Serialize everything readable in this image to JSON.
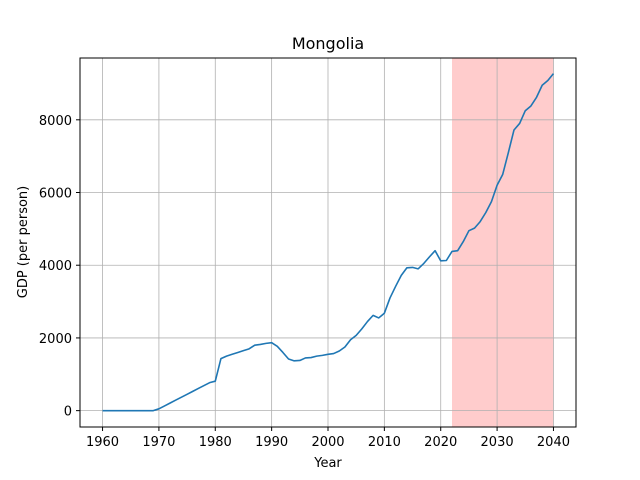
{
  "chart_data": {
    "type": "line",
    "title": "Mongolia",
    "xlabel": "Year",
    "ylabel": "GDP (per person)",
    "xlim": [
      1956,
      2044
    ],
    "ylim": [
      -450,
      9700
    ],
    "xticks": [
      1960,
      1970,
      1980,
      1990,
      2000,
      2010,
      2020,
      2030,
      2040
    ],
    "yticks": [
      0,
      2000,
      4000,
      6000,
      8000
    ],
    "grid": true,
    "highlight_region": {
      "x": [
        2022,
        2040
      ],
      "color": "#ffcccc",
      "meaning": "projection"
    },
    "colors": {
      "line": "#1f77b4",
      "grid": "#b0b0b0",
      "highlight": "#ffcccc"
    },
    "x": [
      1960,
      1961,
      1962,
      1963,
      1964,
      1965,
      1966,
      1967,
      1968,
      1969,
      1970,
      1971,
      1972,
      1973,
      1974,
      1975,
      1976,
      1977,
      1978,
      1979,
      1980,
      1981,
      1982,
      1983,
      1984,
      1985,
      1986,
      1987,
      1988,
      1989,
      1990,
      1991,
      1992,
      1993,
      1994,
      1995,
      1996,
      1997,
      1998,
      1999,
      2000,
      2001,
      2002,
      2003,
      2004,
      2005,
      2006,
      2007,
      2008,
      2009,
      2010,
      2011,
      2012,
      2013,
      2014,
      2015,
      2016,
      2017,
      2018,
      2019,
      2020,
      2021,
      2022,
      2023,
      2024,
      2025,
      2026,
      2027,
      2028,
      2029,
      2030,
      2031,
      2032,
      2033,
      2034,
      2035,
      2036,
      2037,
      2038,
      2039,
      2040
    ],
    "values": [
      0,
      0,
      0,
      0,
      0,
      0,
      0,
      0,
      0,
      0,
      50,
      130,
      210,
      290,
      370,
      450,
      530,
      610,
      690,
      770,
      810,
      1430,
      1500,
      1550,
      1600,
      1650,
      1700,
      1800,
      1820,
      1850,
      1870,
      1770,
      1600,
      1420,
      1370,
      1380,
      1450,
      1460,
      1500,
      1520,
      1550,
      1570,
      1640,
      1750,
      1950,
      2070,
      2250,
      2450,
      2620,
      2550,
      2680,
      3100,
      3420,
      3720,
      3930,
      3940,
      3900,
      4050,
      4230,
      4400,
      4120,
      4130,
      4380,
      4400,
      4650,
      4950,
      5020,
      5200,
      5450,
      5750,
      6200,
      6500,
      7100,
      7720,
      7900,
      8250,
      8380,
      8620,
      8950,
      9080,
      9270
    ]
  }
}
